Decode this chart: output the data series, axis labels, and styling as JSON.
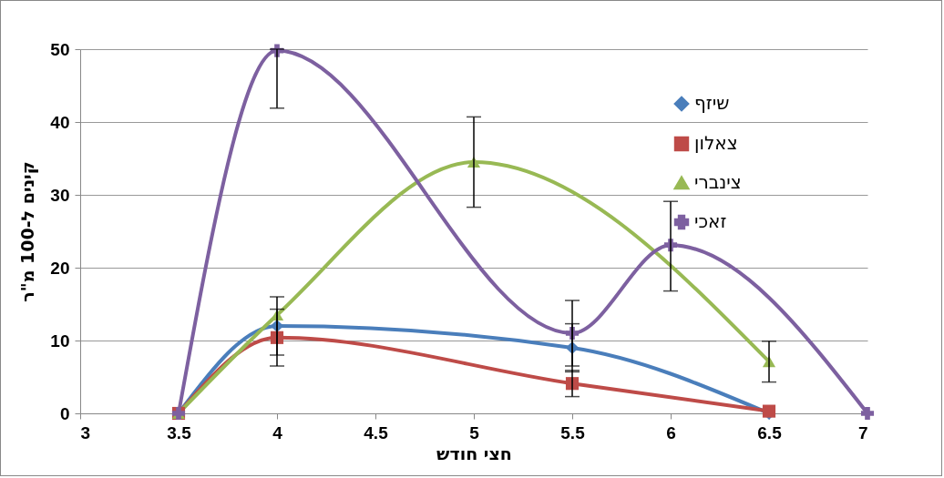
{
  "chart_data": {
    "type": "line",
    "xlabel": "חצי חודש",
    "ylabel": "קינים ל-100 מ\"ר",
    "xlim": [
      3,
      7
    ],
    "xticks": [
      3,
      3.5,
      4,
      4.5,
      5,
      5.5,
      6,
      6.5,
      7
    ],
    "ylim": [
      0,
      50
    ],
    "yticks": [
      0,
      10,
      20,
      30,
      40,
      50
    ],
    "grid": "y",
    "legend": "right",
    "series": [
      {
        "name": "שיזף",
        "color": "#4a7ebb",
        "marker": "diamond",
        "x": [
          3.5,
          4,
          5.5,
          6.5
        ],
        "values": [
          0,
          12,
          9,
          0
        ],
        "errors": [
          null,
          [
            8,
            16
          ],
          [
            5.7,
            12.3
          ],
          null
        ]
      },
      {
        "name": "צאלון",
        "color": "#be4b48",
        "marker": "square",
        "x": [
          3.5,
          4,
          5.5,
          6.5
        ],
        "values": [
          0,
          10.4,
          4.1,
          0.3
        ],
        "errors": [
          null,
          [
            6.5,
            14.3
          ],
          [
            2.3,
            5.9
          ],
          null
        ]
      },
      {
        "name": "צינברי",
        "color": "#98b954",
        "marker": "triangle",
        "x": [
          3.5,
          4,
          5,
          6.5
        ],
        "values": [
          0,
          13.5,
          34.5,
          7.1
        ],
        "errors": [
          null,
          null,
          [
            28.3,
            40.7
          ],
          [
            4.3,
            9.9
          ]
        ]
      },
      {
        "name": "זאכי",
        "color": "#7d60a0",
        "marker": "cross",
        "x": [
          3.5,
          4,
          5.5,
          6,
          7
        ],
        "values": [
          0,
          49.8,
          11,
          23.1,
          0
        ],
        "errors": [
          null,
          [
            41.9,
            50
          ],
          [
            6.5,
            15.5
          ],
          [
            16.8,
            29.1
          ],
          null
        ]
      }
    ]
  }
}
